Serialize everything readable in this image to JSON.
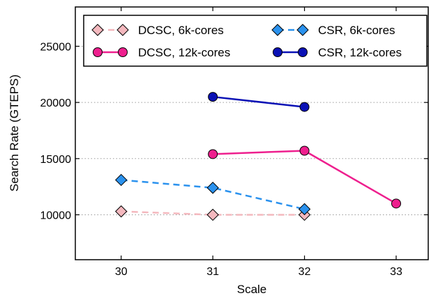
{
  "chart_data": {
    "type": "line",
    "title": "",
    "xlabel": "Scale",
    "ylabel": "Search Rate (GTEPS)",
    "xlim": [
      29.5,
      33.35
    ],
    "ylim": [
      6000,
      28500
    ],
    "xticks": [
      30,
      31,
      32,
      33
    ],
    "yticks": [
      10000,
      15000,
      20000,
      25000
    ],
    "grid": "horizontal-dotted",
    "legend_position": "top",
    "series": [
      {
        "name": "DCSC, 6k-cores",
        "x": [
          30,
          31,
          32
        ],
        "y": [
          10300,
          10000,
          10000
        ],
        "color": "#f4b8be",
        "line_style": "dashed",
        "marker": "diamond"
      },
      {
        "name": "DCSC, 12k-cores",
        "x": [
          31,
          32,
          33
        ],
        "y": [
          15400,
          15700,
          11000
        ],
        "color": "#ee1f8e",
        "line_style": "solid",
        "marker": "circle"
      },
      {
        "name": "CSR, 6k-cores",
        "x": [
          30,
          31,
          32
        ],
        "y": [
          13100,
          12400,
          10500
        ],
        "color": "#2b92ee",
        "line_style": "dashed",
        "marker": "diamond"
      },
      {
        "name": "CSR, 12k-cores",
        "x": [
          31,
          32
        ],
        "y": [
          20500,
          19600
        ],
        "color": "#0a11b5",
        "line_style": "solid",
        "marker": "circle"
      }
    ]
  }
}
